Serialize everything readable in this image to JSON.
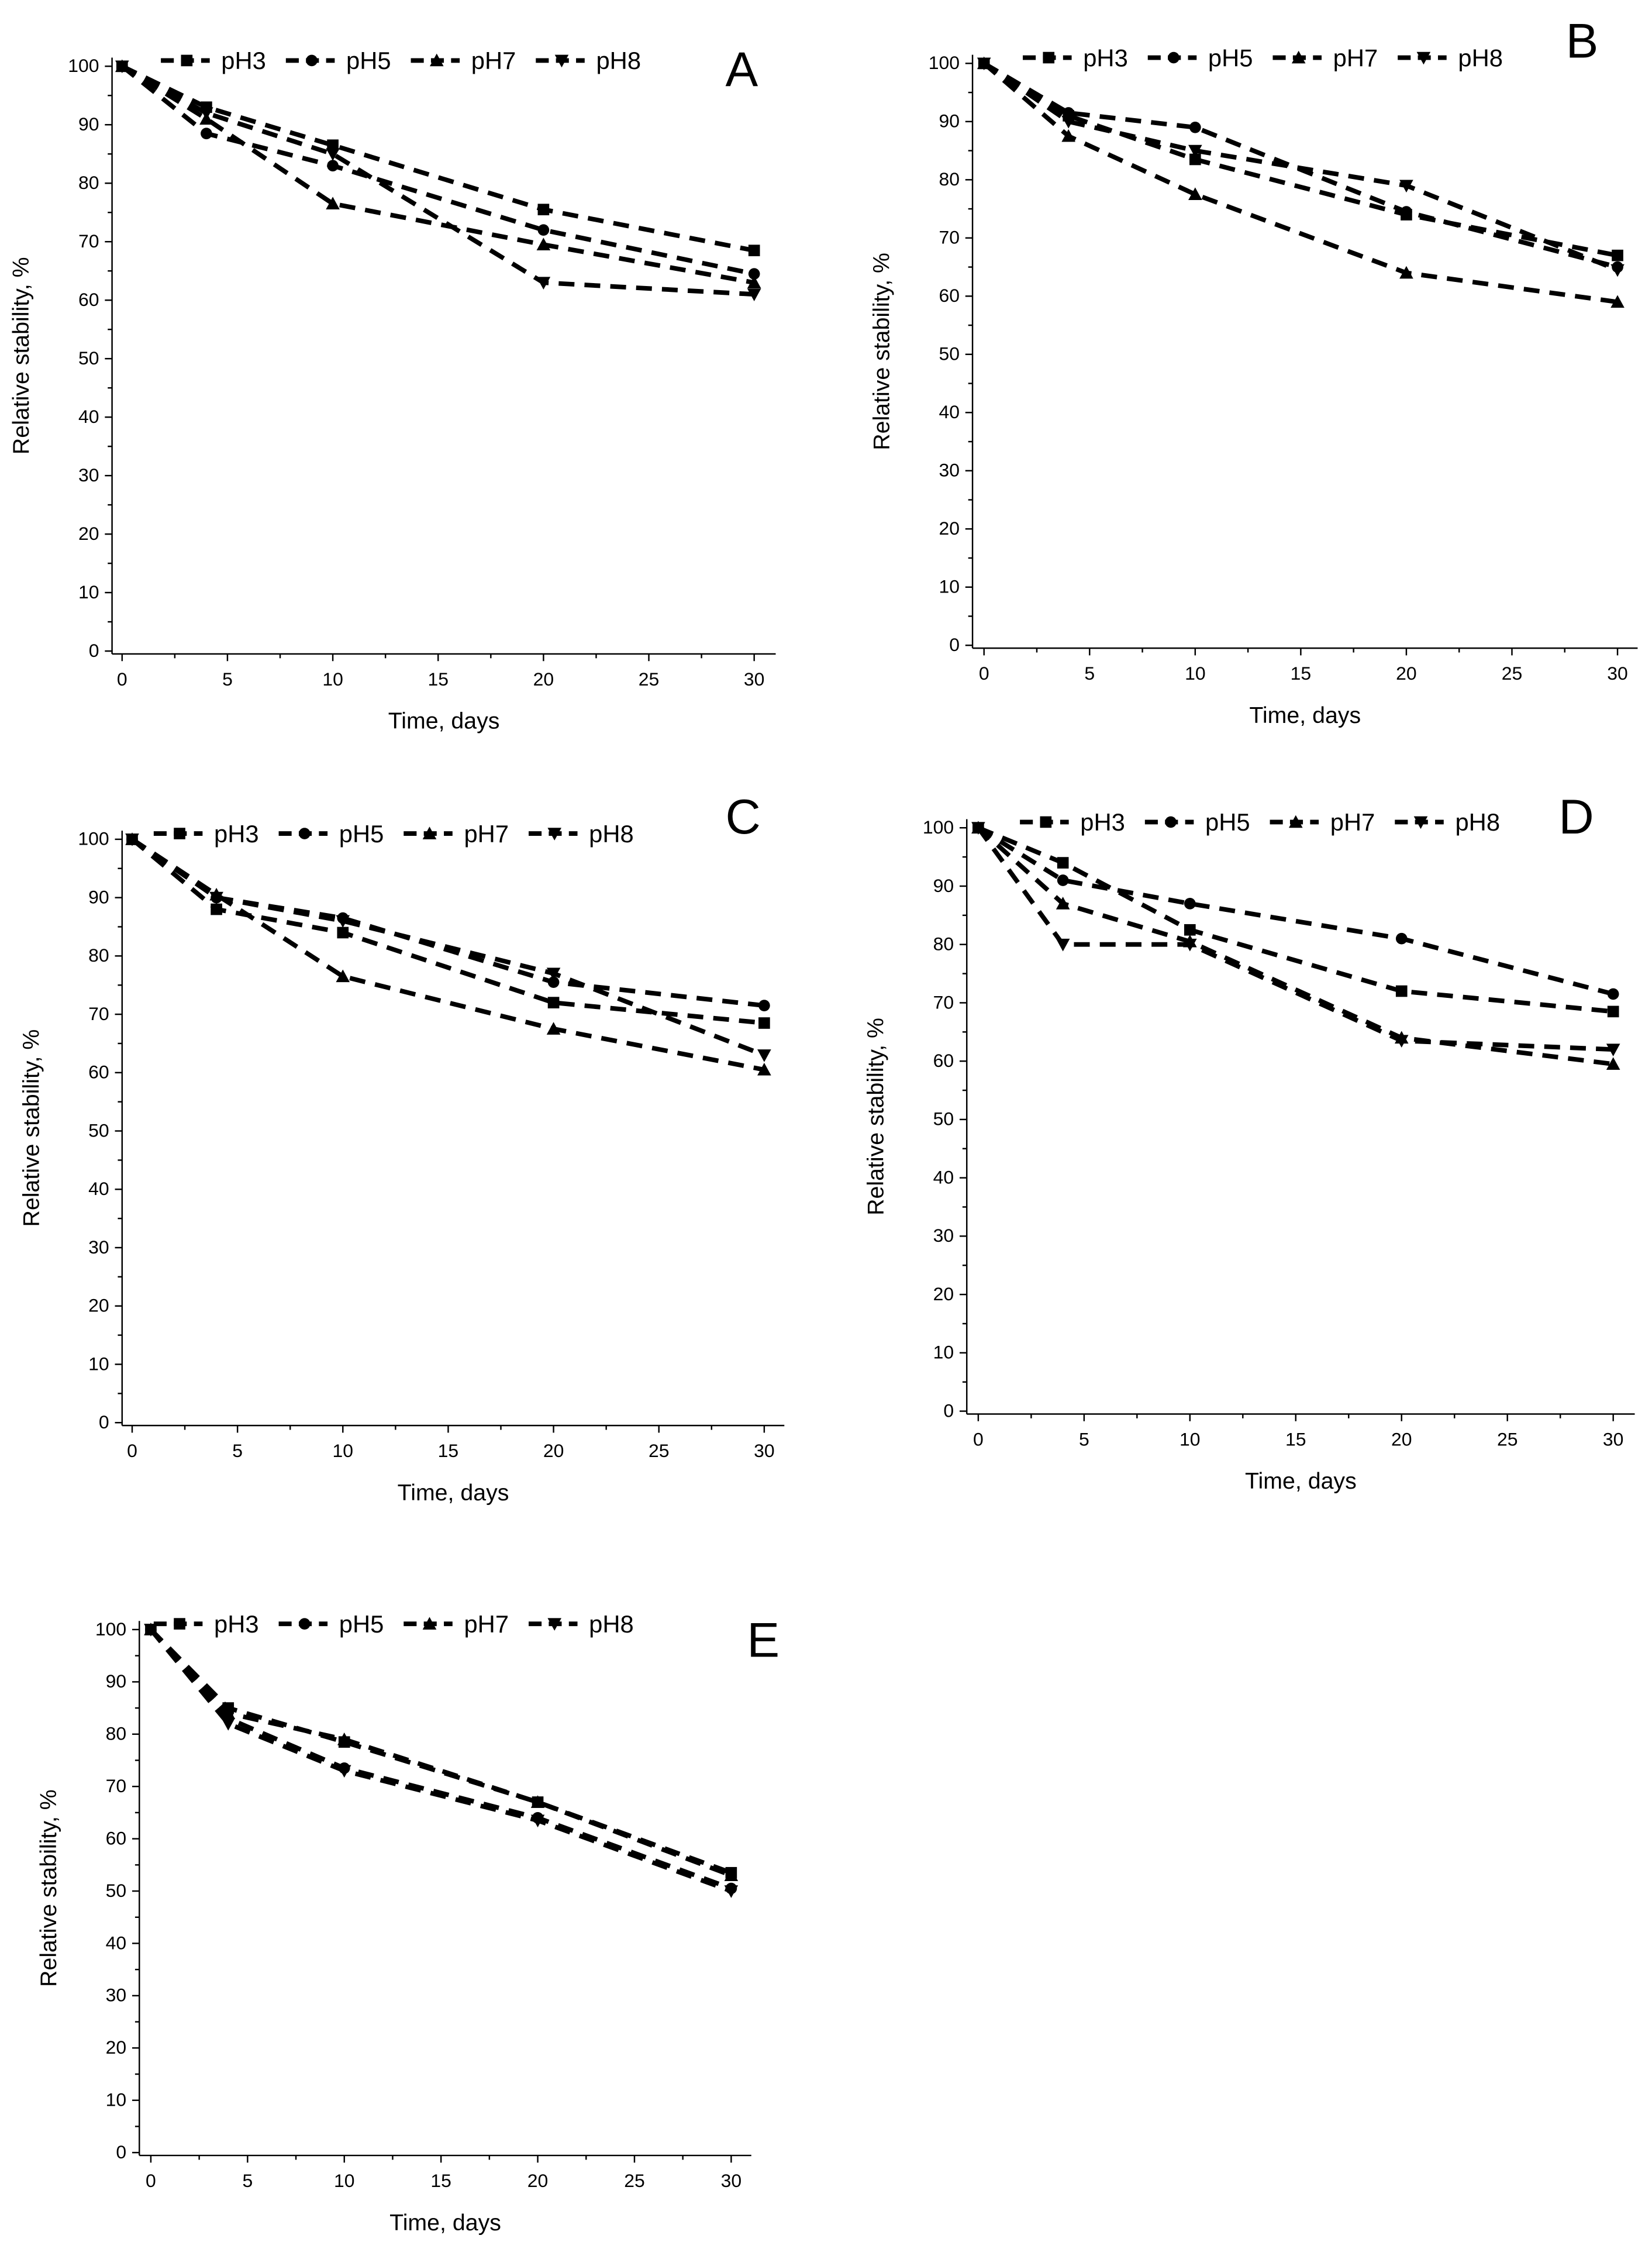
{
  "chart_data": [
    {
      "type": "line",
      "title": "A",
      "xlabel": "Time, days",
      "ylabel": "Relative stability, %",
      "xlim": [
        0,
        30
      ],
      "ylim": [
        0,
        100
      ],
      "xticks": [
        0,
        5,
        10,
        15,
        20,
        25,
        30
      ],
      "yticks": [
        0,
        10,
        20,
        30,
        40,
        50,
        60,
        70,
        80,
        90,
        100
      ],
      "legend_position": "top",
      "x": [
        0,
        4,
        10,
        20,
        30
      ],
      "series": [
        {
          "name": "pH3",
          "marker": "square",
          "values": [
            100,
            93,
            86.5,
            75.5,
            68.5
          ]
        },
        {
          "name": "pH5",
          "marker": "circle",
          "values": [
            100,
            88.5,
            83,
            72,
            64.5
          ]
        },
        {
          "name": "pH7",
          "marker": "triangle-up",
          "values": [
            100,
            91,
            76.5,
            69.5,
            63
          ]
        },
        {
          "name": "pH8",
          "marker": "triangle-down",
          "values": [
            100,
            92,
            85,
            63,
            61
          ]
        }
      ]
    },
    {
      "type": "line",
      "title": "B",
      "xlabel": "Time, days",
      "ylabel": "Relative stability, %",
      "xlim": [
        0,
        30
      ],
      "ylim": [
        0,
        100
      ],
      "xticks": [
        0,
        5,
        10,
        15,
        20,
        25,
        30
      ],
      "yticks": [
        0,
        10,
        20,
        30,
        40,
        50,
        60,
        70,
        80,
        90,
        100
      ],
      "legend_position": "top",
      "x": [
        0,
        4,
        10,
        20,
        30
      ],
      "series": [
        {
          "name": "pH3",
          "marker": "square",
          "values": [
            100,
            91,
            83.5,
            74,
            67
          ]
        },
        {
          "name": "pH5",
          "marker": "circle",
          "values": [
            100,
            91.5,
            89,
            74.5,
            65
          ]
        },
        {
          "name": "pH7",
          "marker": "triangle-up",
          "values": [
            100,
            87.5,
            77.5,
            64,
            59
          ]
        },
        {
          "name": "pH8",
          "marker": "triangle-down",
          "values": [
            100,
            90,
            85,
            79,
            64.5
          ]
        }
      ]
    },
    {
      "type": "line",
      "title": "C",
      "xlabel": "Time, days",
      "ylabel": "Relative stability, %",
      "xlim": [
        0,
        30
      ],
      "ylim": [
        0,
        100
      ],
      "xticks": [
        0,
        5,
        10,
        15,
        20,
        25,
        30
      ],
      "yticks": [
        0,
        10,
        20,
        30,
        40,
        50,
        60,
        70,
        80,
        90,
        100
      ],
      "legend_position": "top",
      "x": [
        0,
        4,
        10,
        20,
        30
      ],
      "series": [
        {
          "name": "pH3",
          "marker": "square",
          "values": [
            100,
            88,
            84,
            72,
            68.5
          ]
        },
        {
          "name": "pH5",
          "marker": "circle",
          "values": [
            100,
            90,
            86.5,
            75.5,
            71.5
          ]
        },
        {
          "name": "pH7",
          "marker": "triangle-up",
          "values": [
            100,
            90.5,
            76.5,
            67.5,
            60.5
          ]
        },
        {
          "name": "pH8",
          "marker": "triangle-down",
          "values": [
            100,
            90,
            86,
            77,
            63
          ]
        }
      ]
    },
    {
      "type": "line",
      "title": "D",
      "xlabel": "Time, days",
      "ylabel": "Relative stability, %",
      "xlim": [
        0,
        30
      ],
      "ylim": [
        0,
        100
      ],
      "xticks": [
        0,
        5,
        10,
        15,
        20,
        25,
        30
      ],
      "yticks": [
        0,
        10,
        20,
        30,
        40,
        50,
        60,
        70,
        80,
        90,
        100
      ],
      "legend_position": "top",
      "x": [
        0,
        4,
        10,
        20,
        30
      ],
      "series": [
        {
          "name": "pH3",
          "marker": "square",
          "values": [
            100,
            94,
            82.5,
            72,
            68.5
          ]
        },
        {
          "name": "pH5",
          "marker": "circle",
          "values": [
            100,
            91,
            87,
            81,
            71.5
          ]
        },
        {
          "name": "pH7",
          "marker": "triangle-up",
          "values": [
            100,
            87,
            80.5,
            64,
            59.5
          ]
        },
        {
          "name": "pH8",
          "marker": "triangle-down",
          "values": [
            100,
            80,
            80,
            63.5,
            62
          ]
        }
      ]
    },
    {
      "type": "line",
      "title": "E",
      "xlabel": "Time, days",
      "ylabel": "Relative stability, %",
      "xlim": [
        0,
        30
      ],
      "ylim": [
        0,
        100
      ],
      "xticks": [
        0,
        5,
        10,
        15,
        20,
        25,
        30
      ],
      "yticks": [
        0,
        10,
        20,
        30,
        40,
        50,
        60,
        70,
        80,
        90,
        100
      ],
      "legend_position": "top",
      "x": [
        0,
        4,
        10,
        20,
        30
      ],
      "series": [
        {
          "name": "pH3",
          "marker": "square",
          "values": [
            100,
            85,
            78.5,
            67,
            53.5
          ]
        },
        {
          "name": "pH5",
          "marker": "circle",
          "values": [
            100,
            83,
            73.5,
            64,
            50.5
          ]
        },
        {
          "name": "pH7",
          "marker": "triangle-up",
          "values": [
            100,
            84,
            79,
            67,
            53
          ]
        },
        {
          "name": "pH8",
          "marker": "triangle-down",
          "values": [
            100,
            82,
            73,
            63.5,
            50
          ]
        }
      ]
    }
  ]
}
